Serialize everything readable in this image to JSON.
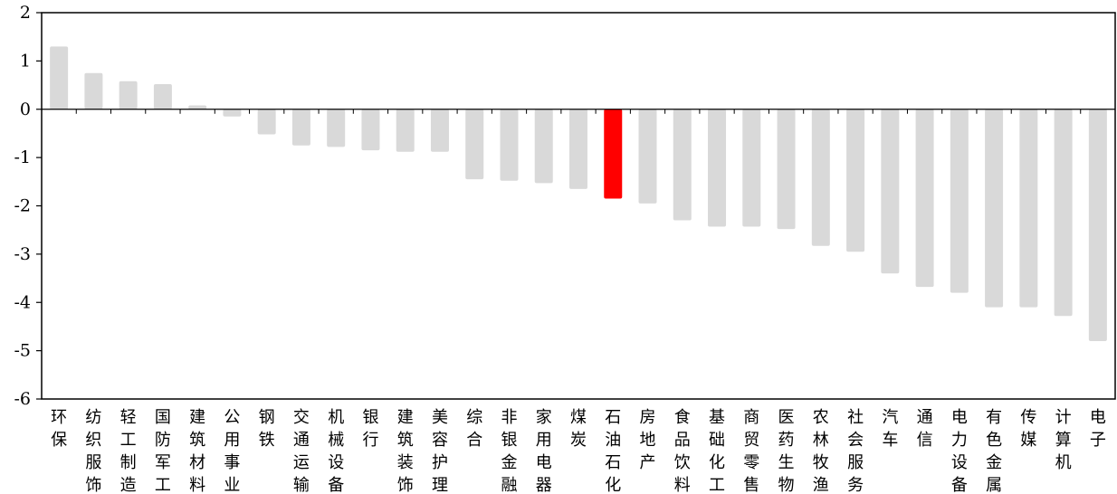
{
  "chart_data": {
    "type": "bar",
    "title": "",
    "xlabel": "",
    "ylabel": "",
    "ylim": [
      -6,
      2
    ],
    "yticks": [
      2,
      1,
      0,
      -1,
      -2,
      -3,
      -4,
      -5,
      -6
    ],
    "grid": false,
    "legend": "none",
    "categories": [
      "环保",
      "纺织服饰",
      "轻工制造",
      "国防军工",
      "建筑材料",
      "公用事业",
      "钢铁",
      "交通运输",
      "机械设备",
      "银行",
      "建筑装饰",
      "美容护理",
      "综合",
      "非银金融",
      "家用电器",
      "煤炭",
      "石油石化",
      "房地产",
      "食品饮料",
      "基础化工",
      "商贸零售",
      "医药生物",
      "农林牧渔",
      "社会服务",
      "汽车",
      "通信",
      "电力设备",
      "有色金属",
      "传媒",
      "计算机",
      "电子"
    ],
    "values": [
      1.3,
      0.75,
      0.58,
      0.52,
      0.08,
      -0.15,
      -0.52,
      -0.75,
      -0.78,
      -0.85,
      -0.88,
      -0.88,
      -1.45,
      -1.48,
      -1.53,
      -1.65,
      -1.85,
      -1.95,
      -2.3,
      -2.43,
      -2.43,
      -2.48,
      -2.83,
      -2.95,
      -3.4,
      -3.68,
      -3.8,
      -4.1,
      -4.1,
      -4.28,
      -4.8
    ],
    "highlight": "石油石化",
    "colors": {
      "bar": "#d9d9d9",
      "highlight": "#ff0000",
      "axis": "#000000"
    }
  }
}
